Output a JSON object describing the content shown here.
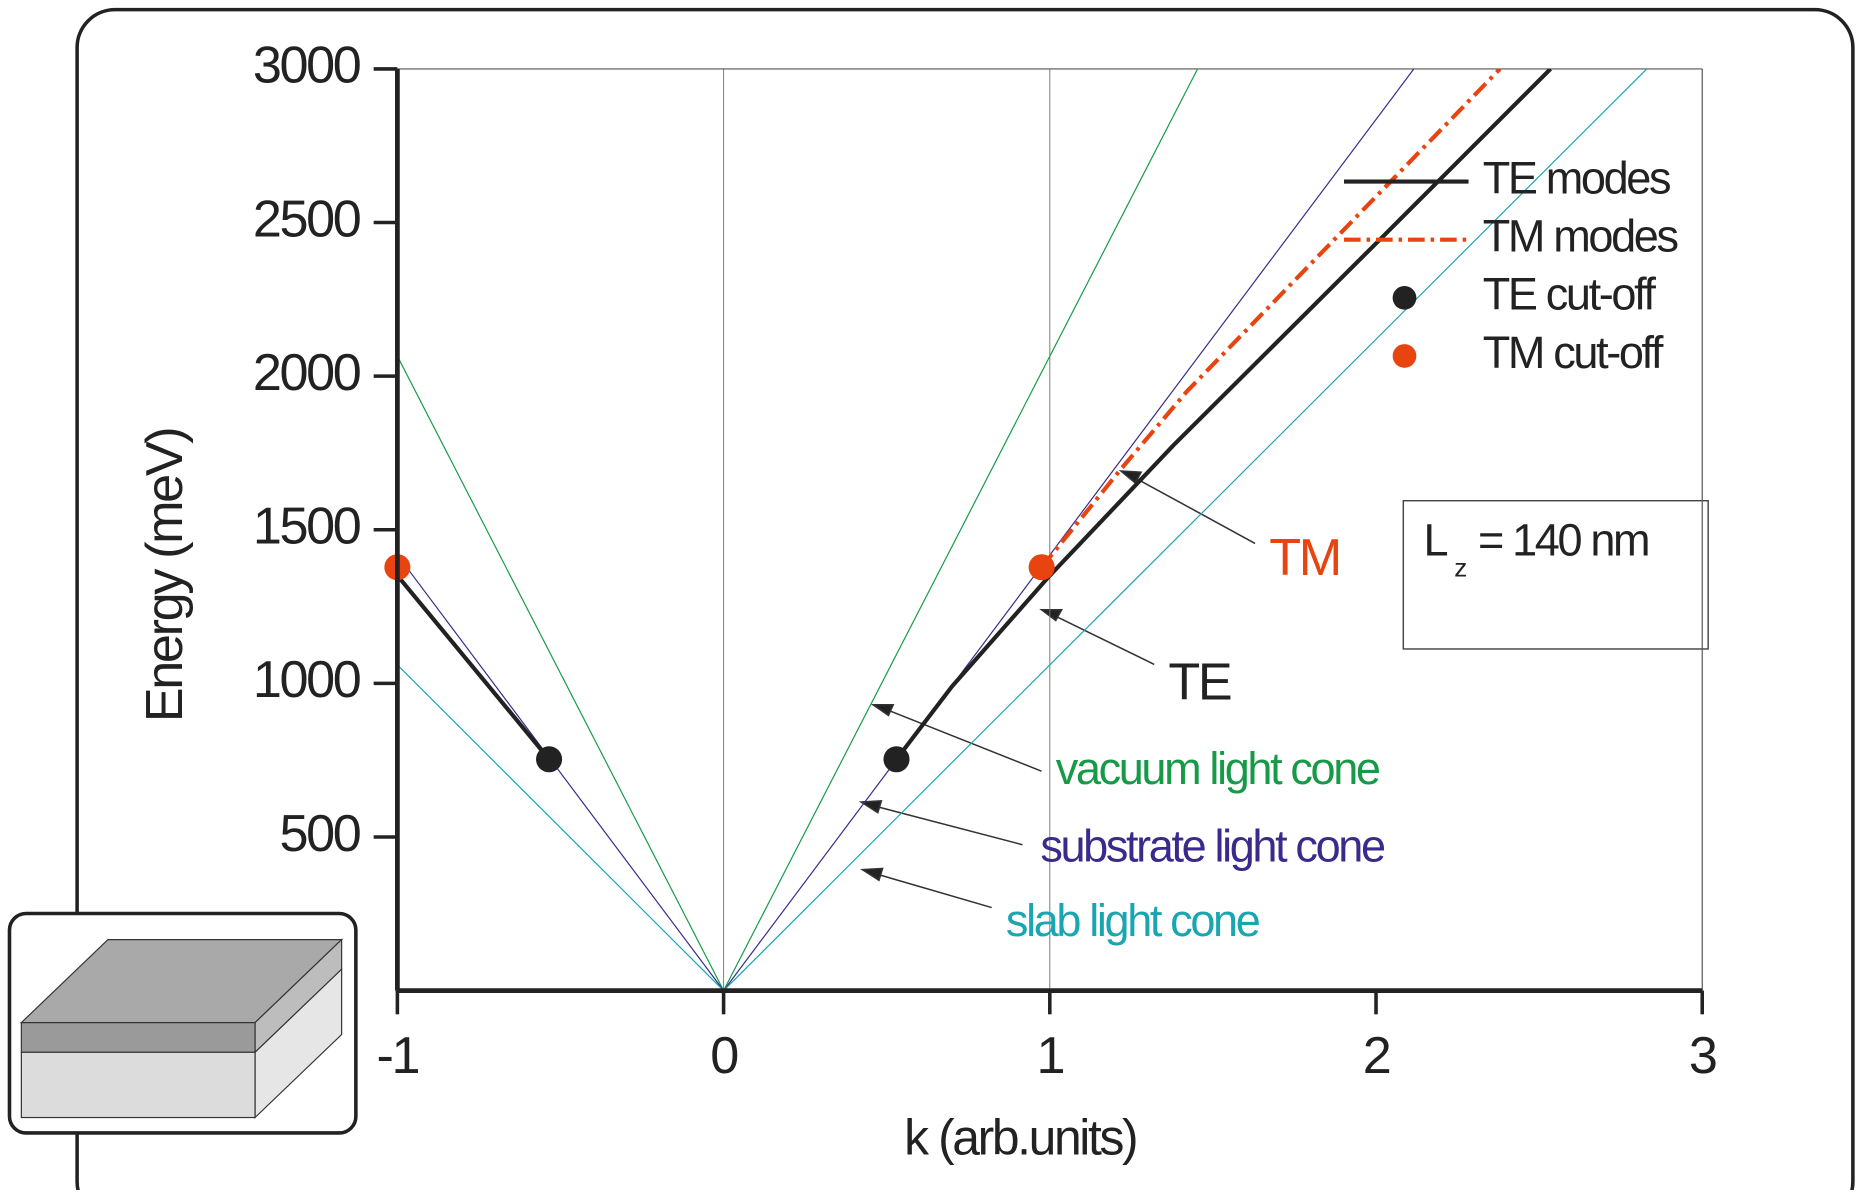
{
  "chart_data": {
    "type": "line",
    "xlabel": "k (arb.units)",
    "ylabel": "Energy (meV)",
    "xlim": [
      -1,
      3
    ],
    "ylim": [
      0,
      3000
    ],
    "xticks": [
      -1,
      0,
      1,
      2,
      3
    ],
    "yticks": [
      500,
      1000,
      1500,
      2000,
      2500,
      3000
    ],
    "vlines": [
      0,
      1
    ],
    "legend": "upper right",
    "light_cones": [
      {
        "name": "vacuum light cone",
        "color": "#169a48",
        "x": [
          -1,
          0,
          1.453
        ],
        "values": [
          2065,
          0,
          3000
        ]
      },
      {
        "name": "substrate light cone",
        "color": "#3b2a8c",
        "x": [
          -1,
          0,
          2.116
        ],
        "values": [
          1418,
          0,
          3000
        ]
      },
      {
        "name": "slab light cone",
        "color": "#1aa6b0",
        "x": [
          -1,
          0,
          2.83
        ],
        "values": [
          1060,
          0,
          3000
        ]
      }
    ],
    "series": [
      {
        "name": "TE modes",
        "color": "#222222",
        "style": "solid",
        "x": [
          -1,
          -0.535,
          null,
          0.53,
          0.7,
          1.0,
          1.38,
          2.0,
          2.535
        ],
        "values": [
          1351,
          753,
          null,
          753,
          990,
          1351,
          1776,
          2432,
          3000
        ]
      },
      {
        "name": "TM modes",
        "color": "#e8440f",
        "style": "dashdot",
        "x": [
          0.975,
          1.22,
          1.42,
          2.38
        ],
        "values": [
          1378,
          1700,
          1950,
          3000
        ]
      }
    ],
    "cutoffs": [
      {
        "name": "TE cut-off",
        "color": "#222222",
        "x": [
          -0.535,
          0.53
        ],
        "values": [
          753,
          753
        ]
      },
      {
        "name": "TM cut-off",
        "color": "#e8440f",
        "x": [
          -1,
          0.975
        ],
        "values": [
          1378,
          1378
        ]
      }
    ],
    "annotations": [
      {
        "text": "TM",
        "color": "#e8440f"
      },
      {
        "text": "TE",
        "color": "#222222"
      }
    ],
    "parameter": {
      "main": "L",
      "sub": "z",
      "rest": "= 140 nm"
    }
  }
}
